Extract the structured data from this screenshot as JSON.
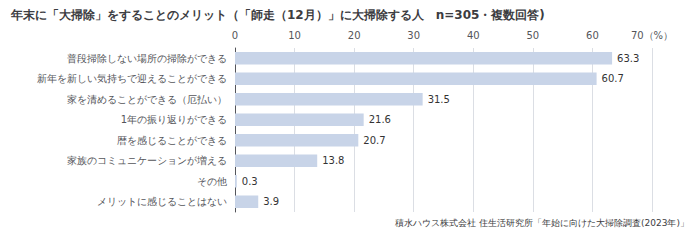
{
  "chart_data": {
    "type": "bar",
    "orientation": "horizontal",
    "title": "年末に「大掃除」をすることのメリット（「師走（12月）」に大掃除する人　n=305・複数回答)",
    "categories": [
      "メリットに感じることはない",
      "その他",
      "家族のコミュニケーションが増える",
      "暦を感じることができる",
      "1年の振り返りができる",
      "家を清めることができる（厄払い）",
      "新年を新しい気持ちで迎えることができる",
      "普段掃除しない場所の掃除ができる"
    ],
    "values": [
      3.9,
      0.3,
      13.8,
      20.7,
      21.6,
      31.5,
      60.7,
      63.3
    ],
    "color": "#c8d4e8",
    "xlim": [
      0,
      70
    ],
    "xticks": [
      0,
      10,
      20,
      30,
      40,
      50,
      60,
      {
        "value": 70,
        "label": "70（%）"
      }
    ],
    "grid": true,
    "data_labels": true,
    "footnote": "積水ハウス株式会社 住生活研究所「年始に向けた大掃除調査(2023年)」"
  }
}
